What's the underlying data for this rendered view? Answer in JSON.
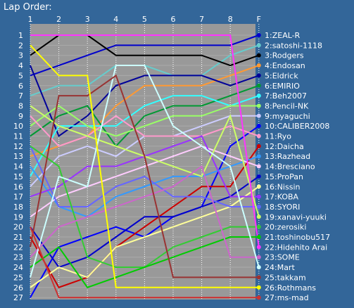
{
  "chart_data": {
    "type": "line",
    "title": "Lap Order:",
    "x_ticks": [
      "1",
      "2",
      "3",
      "4",
      "5",
      "6",
      "7",
      "8",
      "F"
    ],
    "positions": 27,
    "invert_y": true,
    "background": "#336699",
    "plot_background": "#999999",
    "grid": true,
    "final_order": [
      {
        "pos": 1,
        "label": "1:ZEAL-R",
        "color": "#0000cc"
      },
      {
        "pos": 2,
        "label": "2:satoshi-1118",
        "color": "#66cccc"
      },
      {
        "pos": 3,
        "label": "3:Rodgers",
        "color": "#000000"
      },
      {
        "pos": 4,
        "label": "4:Endosan",
        "color": "#ff9933"
      },
      {
        "pos": 5,
        "label": "5:Eldrick",
        "color": "#000099"
      },
      {
        "pos": 6,
        "label": "6:EMIRIO",
        "color": "#009933"
      },
      {
        "pos": 7,
        "label": "7:Beh2007",
        "color": "#33ffff"
      },
      {
        "pos": 8,
        "label": "8:Pencil-NK",
        "color": "#99ff66"
      },
      {
        "pos": 9,
        "label": "9:myaguchi",
        "color": "#ccccff"
      },
      {
        "pos": 10,
        "label": "10:CALIBER2008",
        "color": "#0000ff"
      },
      {
        "pos": 11,
        "label": "11:Ryo",
        "color": "#ff99cc"
      },
      {
        "pos": 12,
        "label": "12:Daicha",
        "color": "#cc0000"
      },
      {
        "pos": 13,
        "label": "13:Razhead",
        "color": "#3399ff"
      },
      {
        "pos": 14,
        "label": "14:Bresciano",
        "color": "#ffccff"
      },
      {
        "pos": 15,
        "label": "15:ProPan",
        "color": "#0000cc"
      },
      {
        "pos": 16,
        "label": "16:Nissin",
        "color": "#ffff99"
      },
      {
        "pos": 17,
        "label": "17:KOBA",
        "color": "#9933ff"
      },
      {
        "pos": 18,
        "label": "18:SYORI",
        "color": "#6666ff"
      },
      {
        "pos": 19,
        "label": "19:xanavi-yuuki",
        "color": "#ccff66"
      },
      {
        "pos": 20,
        "label": "20:zerosiki",
        "color": "#33cc33"
      },
      {
        "pos": 21,
        "label": "21:toshinobu517",
        "color": "#00cc00"
      },
      {
        "pos": 22,
        "label": "22:Hidehito Arai",
        "color": "#ff33ff"
      },
      {
        "pos": 23,
        "label": "23:SOME",
        "color": "#cc66cc"
      },
      {
        "pos": 24,
        "label": "24:Mart",
        "color": "#ccffff"
      },
      {
        "pos": 25,
        "label": "25:takkam",
        "color": "#993333"
      },
      {
        "pos": 26,
        "label": "26:Rothmans",
        "color": "#ffff00"
      },
      {
        "pos": 27,
        "label": "27:ms-mad",
        "color": "#cc3333"
      }
    ],
    "series": [
      {
        "name": "ZEAL-R",
        "color": "#0000cc",
        "values": [
          5,
          4,
          3,
          2,
          2,
          2,
          2,
          2,
          1
        ]
      },
      {
        "name": "satoshi-1118",
        "color": "#66cccc",
        "values": [
          7,
          6,
          6,
          4,
          4,
          5,
          5,
          3,
          2
        ]
      },
      {
        "name": "Rodgers",
        "color": "#000000",
        "values": [
          3,
          1,
          1,
          3,
          3,
          3,
          3,
          4,
          3
        ]
      },
      {
        "name": "Endosan",
        "color": "#ff9933",
        "values": [
          13,
          12,
          11,
          8,
          6,
          6,
          6,
          5,
          4
        ]
      },
      {
        "name": "Eldrick",
        "color": "#000099",
        "values": [
          4,
          11,
          9,
          6,
          5,
          5,
          5,
          6,
          5
        ]
      },
      {
        "name": "EMIRIO",
        "color": "#009933",
        "values": [
          11,
          9,
          8,
          12,
          9,
          8,
          8,
          7,
          6
        ]
      },
      {
        "name": "Beh2007",
        "color": "#33ffff",
        "values": [
          15,
          10,
          10,
          10,
          8,
          7,
          7,
          8,
          7
        ]
      },
      {
        "name": "Pencil-NK",
        "color": "#99ff66",
        "values": [
          10,
          8,
          10,
          11,
          10,
          9,
          9,
          8,
          8
        ]
      },
      {
        "name": "myaguchi",
        "color": "#ccccff",
        "values": [
          16,
          13,
          12,
          13,
          11,
          11,
          10,
          9,
          9
        ]
      },
      {
        "name": "CALIBER2008",
        "color": "#0000ff",
        "values": [
          27,
          22,
          21,
          20,
          21,
          19,
          18,
          12,
          10
        ]
      },
      {
        "name": "Ryo",
        "color": "#ff99cc",
        "values": [
          9,
          12,
          11,
          9,
          11,
          11,
          11,
          10,
          11
        ]
      },
      {
        "name": "Daicha",
        "color": "#cc0000",
        "values": [
          21,
          26,
          25,
          22,
          20,
          18,
          16,
          16,
          12
        ]
      },
      {
        "name": "Razhead",
        "color": "#3399ff",
        "values": [
          14,
          18,
          19,
          17,
          16,
          15,
          15,
          14,
          13
        ]
      },
      {
        "name": "Bresciano",
        "color": "#ffccff",
        "values": [
          19,
          17,
          16,
          15,
          14,
          13,
          12,
          13,
          14
        ]
      },
      {
        "name": "ProPan",
        "color": "#0000cc",
        "values": [
          20,
          24,
          23,
          21,
          19,
          19,
          18,
          17,
          15
        ]
      },
      {
        "name": "Nissin",
        "color": "#ffff99",
        "values": [
          26,
          24,
          25,
          22,
          21,
          20,
          19,
          18,
          16
        ]
      },
      {
        "name": "KOBA",
        "color": "#9933ff",
        "values": [
          17,
          16,
          14,
          14,
          13,
          12,
          11,
          17,
          17
        ]
      },
      {
        "name": "SYORI",
        "color": "#6666ff",
        "values": [
          12,
          18,
          18,
          16,
          15,
          17,
          17,
          18,
          18
        ]
      },
      {
        "name": "xanavi-yuuki",
        "color": "#ccff66",
        "values": [
          8,
          10,
          11,
          12,
          13,
          14,
          15,
          9,
          19
        ]
      },
      {
        "name": "zerosiki",
        "color": "#33cc33",
        "values": [
          12,
          14,
          23,
          24,
          24,
          22,
          21,
          20,
          20
        ]
      },
      {
        "name": "toshinobu517",
        "color": "#00cc00",
        "values": [
          24,
          22,
          26,
          25,
          24,
          23,
          22,
          21,
          21
        ]
      },
      {
        "name": "Hidehito Arai",
        "color": "#ff33ff",
        "values": [
          1,
          1,
          1,
          1,
          1,
          1,
          1,
          1,
          22
        ]
      },
      {
        "name": "SOME",
        "color": "#cc66cc",
        "values": [
          23,
          20,
          19,
          18,
          17,
          16,
          14,
          23,
          23
        ]
      },
      {
        "name": "Mart",
        "color": "#ccffff",
        "values": [
          25,
          15,
          16,
          4,
          4,
          10,
          12,
          14,
          24
        ]
      },
      {
        "name": "takkam",
        "color": "#993333",
        "values": [
          22,
          7,
          7,
          5,
          13,
          25,
          25,
          25,
          25
        ]
      },
      {
        "name": "Rothmans",
        "color": "#ffff00",
        "values": [
          2,
          5,
          5,
          26,
          26,
          26,
          26,
          26,
          26
        ]
      },
      {
        "name": "ms-mad",
        "color": "#cc3333",
        "values": [
          20,
          27,
          27,
          27,
          27,
          27,
          27,
          27,
          27
        ]
      }
    ]
  }
}
